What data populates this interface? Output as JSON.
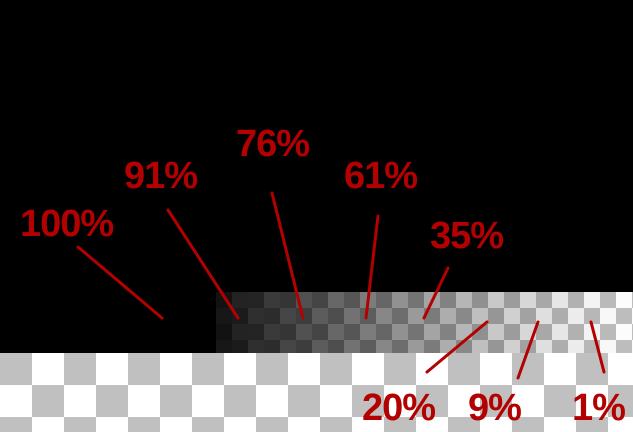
{
  "colors": {
    "background": "#000000",
    "label": "#b30000",
    "leader": "#b30000",
    "checker_light": "#ffffff",
    "checker_dark": "#c0c0c0"
  },
  "labels": [
    {
      "id": "label-100",
      "text": "100%",
      "opacity_pct": 100
    },
    {
      "id": "label-91",
      "text": "91%",
      "opacity_pct": 91
    },
    {
      "id": "label-76",
      "text": "76%",
      "opacity_pct": 76
    },
    {
      "id": "label-61",
      "text": "61%",
      "opacity_pct": 61
    },
    {
      "id": "label-35",
      "text": "35%",
      "opacity_pct": 35
    },
    {
      "id": "label-20",
      "text": "20%",
      "opacity_pct": 20
    },
    {
      "id": "label-9",
      "text": "9%",
      "opacity_pct": 9
    },
    {
      "id": "label-1",
      "text": "1%",
      "opacity_pct": 1
    }
  ]
}
